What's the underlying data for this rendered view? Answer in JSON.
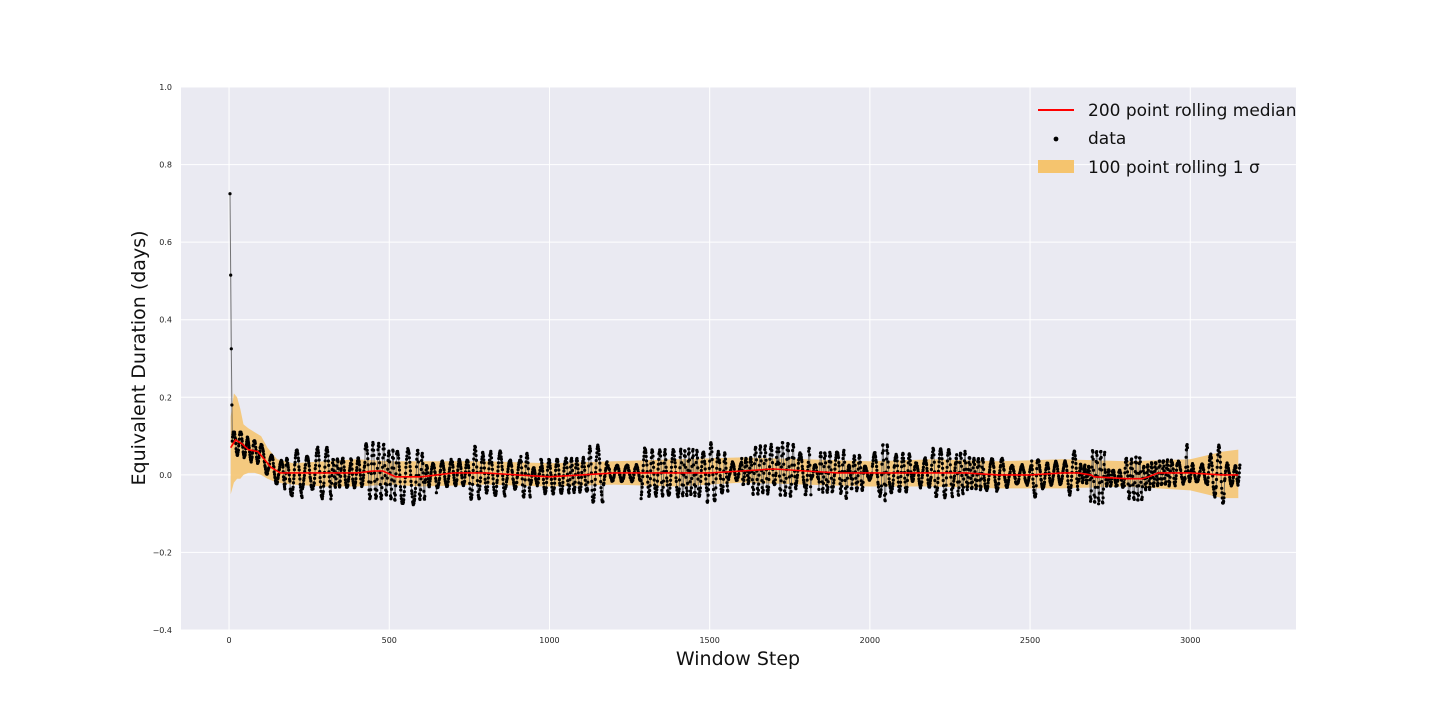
{
  "chart_data": {
    "type": "line",
    "title": "",
    "xlabel": "Window Step",
    "ylabel": "Equivalent Duration (days)",
    "xlim": [
      -150,
      3330
    ],
    "ylim": [
      -0.4,
      1.0
    ],
    "xticks": [
      0,
      500,
      1000,
      1500,
      2000,
      2500,
      3000
    ],
    "yticks": [
      -0.4,
      -0.2,
      0.0,
      0.2,
      0.4,
      0.6,
      0.8,
      1.0
    ],
    "ytick_labels": [
      "−0.4",
      "−0.2",
      "0.0",
      "0.2",
      "0.4",
      "0.6",
      "0.8",
      "1.0"
    ],
    "grid": true,
    "legend_position": "upper right",
    "colors": {
      "background": "#eaeaf2",
      "grid": "#ffffff",
      "median": "#ff0000",
      "band": "#f5c46e",
      "data_points": "#000000",
      "data_line": "#555555"
    },
    "series": [
      {
        "name": "200 point rolling median",
        "kind": "line",
        "x": [
          5,
          20,
          40,
          60,
          90,
          110,
          130,
          150,
          160,
          200,
          300,
          400,
          450,
          480,
          520,
          600,
          700,
          800,
          900,
          1000,
          1100,
          1200,
          1300,
          1400,
          1500,
          1600,
          1700,
          1800,
          1900,
          2000,
          2100,
          2200,
          2300,
          2400,
          2500,
          2600,
          2650,
          2690,
          2700,
          2800,
          2850,
          2870,
          2900,
          3000,
          3100,
          3150
        ],
        "y": [
          0.07,
          0.09,
          0.08,
          0.065,
          0.06,
          0.04,
          0.02,
          0.01,
          0.005,
          0.005,
          0.005,
          0.005,
          0.01,
          0.01,
          -0.005,
          -0.005,
          0.005,
          0.005,
          0.0,
          -0.005,
          0.0,
          0.005,
          0.005,
          0.005,
          0.005,
          0.01,
          0.015,
          0.01,
          0.005,
          0.005,
          0.005,
          0.005,
          0.005,
          0.0,
          0.0,
          0.005,
          0.005,
          0.0,
          -0.005,
          -0.01,
          -0.01,
          -0.005,
          0.005,
          0.005,
          0.0,
          0.0
        ]
      },
      {
        "name": "data",
        "kind": "scatter",
        "spike_x": [
          3,
          5,
          7,
          9
        ],
        "spike_y": [
          0.725,
          0.515,
          0.325,
          0.18
        ],
        "x_start": 0,
        "x_end": 3155,
        "point_count": 3156,
        "y_min": -0.09,
        "y_max": 0.11
      },
      {
        "name": "100 point rolling 1 σ",
        "kind": "band",
        "x": [
          5,
          15,
          25,
          35,
          45,
          60,
          80,
          100,
          120,
          150,
          200,
          300,
          400,
          500,
          600,
          800,
          1000,
          1200,
          1400,
          1600,
          1800,
          2000,
          2200,
          2400,
          2600,
          2800,
          3000,
          3050,
          3100,
          3150
        ],
        "lower": [
          -0.05,
          -0.02,
          -0.01,
          -0.01,
          0.0,
          0.005,
          0.005,
          0.0,
          -0.01,
          -0.02,
          -0.025,
          -0.03,
          -0.03,
          -0.025,
          -0.03,
          -0.025,
          -0.03,
          -0.025,
          -0.03,
          -0.02,
          -0.025,
          -0.03,
          -0.03,
          -0.035,
          -0.035,
          -0.03,
          -0.04,
          -0.05,
          -0.06,
          -0.06
        ],
        "upper": [
          0.15,
          0.21,
          0.2,
          0.17,
          0.13,
          0.12,
          0.11,
          0.1,
          0.07,
          0.04,
          0.03,
          0.035,
          0.04,
          0.035,
          0.035,
          0.035,
          0.03,
          0.035,
          0.04,
          0.045,
          0.04,
          0.035,
          0.04,
          0.035,
          0.04,
          0.035,
          0.04,
          0.05,
          0.06,
          0.065
        ]
      }
    ],
    "legend": {
      "entries": [
        "200 point rolling median",
        "data",
        "100 point rolling 1 σ"
      ]
    }
  }
}
